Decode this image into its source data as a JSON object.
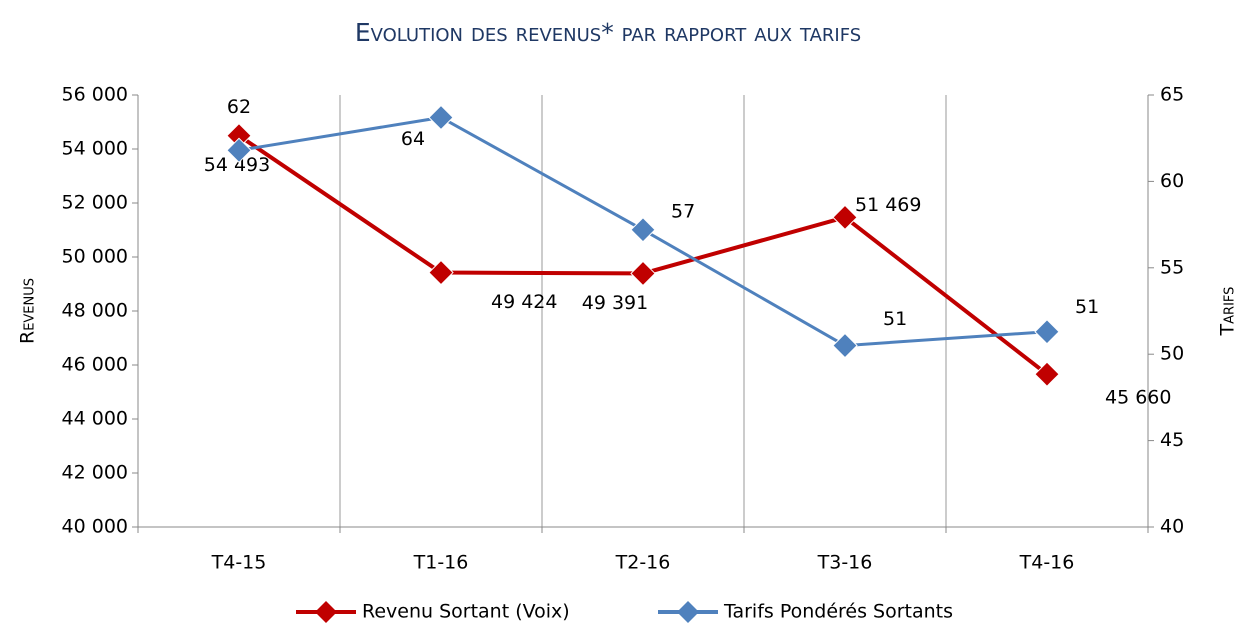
{
  "chart_data": {
    "type": "line",
    "title": "Evolution des revenus* par rapport aux tarifs",
    "y_label": "Revenus",
    "y2_label": "Tarifs",
    "categories": [
      "T4-15",
      "T1-16",
      "T2-16",
      "T3-16",
      "T4-16"
    ],
    "series": [
      {
        "name": "Revenu Sortant (Voix)",
        "color": "#c00000",
        "values": [
          54493,
          49424,
          49391,
          51469,
          45660
        ],
        "value_labels": [
          "54 493",
          "49 424",
          "49 391",
          "51 469",
          "45 660"
        ]
      },
      {
        "name": "Tarifs Pondérés Sortants",
        "color": "#4f81bd",
        "axis": "y2",
        "values": [
          61.8,
          63.7,
          57.2,
          50.5,
          51.3
        ],
        "value_labels": [
          "62",
          "64",
          "57",
          "51",
          "51"
        ]
      }
    ],
    "ylim": [
      40000,
      56000
    ],
    "yticks": [
      {
        "value": 40000,
        "label": "40 000"
      },
      {
        "value": 42000,
        "label": "42 000"
      },
      {
        "value": 44000,
        "label": "44 000"
      },
      {
        "value": 46000,
        "label": "46 000"
      },
      {
        "value": 48000,
        "label": "48 000"
      },
      {
        "value": 50000,
        "label": "50 000"
      },
      {
        "value": 52000,
        "label": "52 000"
      },
      {
        "value": 54000,
        "label": "54 000"
      },
      {
        "value": 56000,
        "label": "56 000"
      }
    ],
    "y2lim": [
      40,
      65
    ],
    "y2ticks": [
      40,
      45,
      50,
      55,
      60,
      65
    ],
    "grid": true,
    "legend": "bottom"
  }
}
